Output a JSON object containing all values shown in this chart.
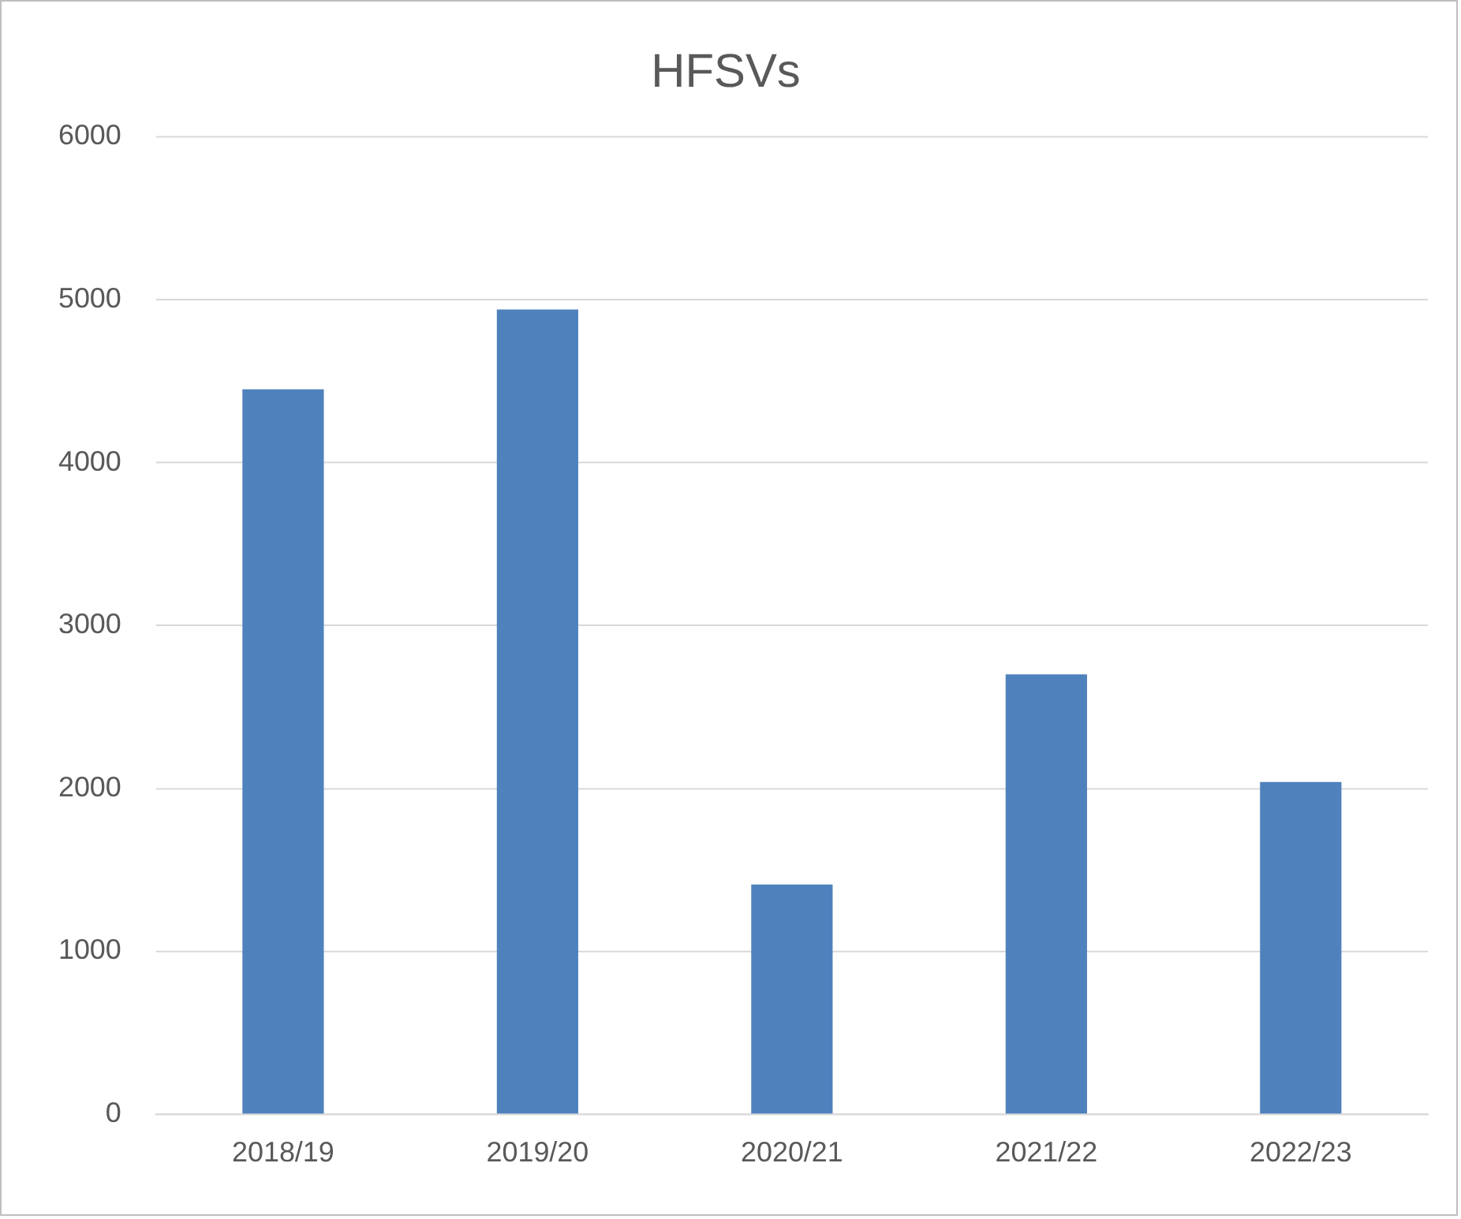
{
  "chart_data": {
    "type": "bar",
    "title": "HFSVs",
    "categories": [
      "2018/19",
      "2019/20",
      "2020/21",
      "2021/22",
      "2022/23"
    ],
    "values": [
      4450,
      4940,
      1410,
      2700,
      2040
    ],
    "color": "#4f81bd",
    "ylim": [
      0,
      6000
    ],
    "yticks": [
      0,
      1000,
      2000,
      3000,
      4000,
      5000,
      6000
    ],
    "grid": "y",
    "legend": false
  }
}
